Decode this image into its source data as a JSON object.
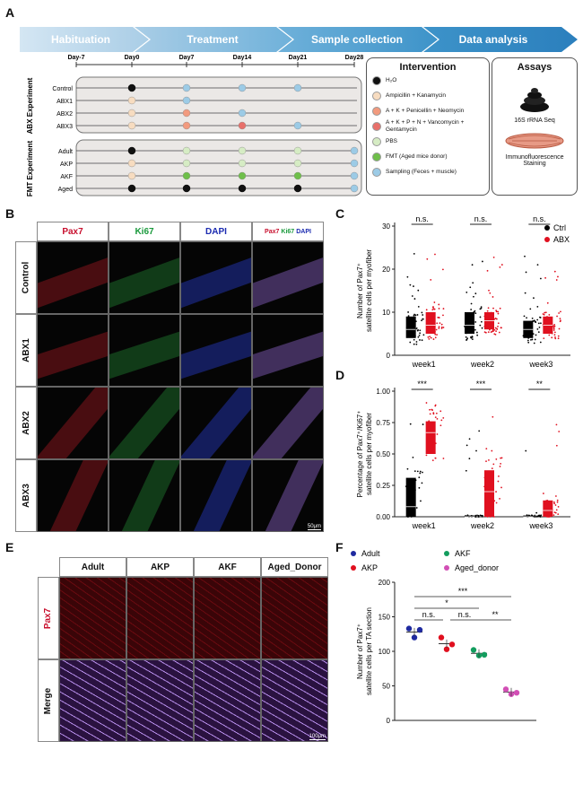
{
  "panels": {
    "A": "A",
    "B": "B",
    "C": "C",
    "D": "D",
    "E": "E",
    "F": "F"
  },
  "phases": [
    "Habituation",
    "Treatment",
    "Sample collection",
    "Data analysis"
  ],
  "days": [
    "Day-7",
    "Day0",
    "Day7",
    "Day14",
    "Day21",
    "Day28"
  ],
  "abx": {
    "title": "ABX Experiment",
    "rows": [
      "Control",
      "ABX1",
      "ABX2",
      "ABX3"
    ]
  },
  "fmt": {
    "title": "FMT Experiment",
    "rows": [
      "Adult",
      "AKP",
      "AKF",
      "Aged"
    ]
  },
  "intervention": {
    "title": "Intervention",
    "items": [
      {
        "label": "H₂O",
        "color": "#111111"
      },
      {
        "label": "Ampicillin + Kanamycin",
        "color": "#f7dcc0"
      },
      {
        "label": "A + K + Penicellin + Neomycin",
        "color": "#f29a7e"
      },
      {
        "label": "A + K + P + N + Vancomycin + Gentamycin",
        "color": "#e8706a"
      },
      {
        "label": "PBS",
        "color": "#d6ecc4"
      },
      {
        "label": "FMT (Aged mice donor)",
        "color": "#6fbf4a"
      },
      {
        "label": "Sampling (Feces + muscle)",
        "color": "#9ccbe6"
      }
    ]
  },
  "assays": {
    "title": "Assays",
    "items": [
      "16S rRNA Seq",
      "Immunofluorescence Staining"
    ]
  },
  "panelB": {
    "columns": [
      "Pax7",
      "Ki67",
      "DAPI"
    ],
    "merge": {
      "a": "Pax7",
      "b": "Ki67",
      "c": "DAPI"
    },
    "rows": [
      "Control",
      "ABX1",
      "ABX2",
      "ABX3"
    ],
    "scale": "50μm"
  },
  "panelE": {
    "columns": [
      "Adult",
      "AKP",
      "AKF",
      "Aged_Donor"
    ],
    "rows": [
      "Pax7",
      "Merge"
    ],
    "scale": "100μm"
  },
  "colors": {
    "ctrl": "#000000",
    "abx": "#e0101f",
    "adult": "#1f2aa0",
    "akp": "#e0101f",
    "akf": "#139d5e",
    "aged": "#d24fb5"
  },
  "chart_data": [
    {
      "panel": "C",
      "type": "bar",
      "ylabel": "Number of Pax7⁺ satellite cells per myofiber",
      "categories": [
        "week1",
        "week2",
        "week3"
      ],
      "ylim": [
        0,
        30
      ],
      "yticks": [
        0,
        10,
        20,
        30
      ],
      "legend": [
        "Ctrl",
        "ABX"
      ],
      "significance": [
        "n.s.",
        "n.s.",
        "n.s."
      ],
      "series": [
        {
          "name": "Ctrl",
          "boxes": [
            {
              "q1": 4,
              "median": 6,
              "q3": 9
            },
            {
              "q1": 5,
              "median": 7,
              "q3": 10
            },
            {
              "q1": 4,
              "median": 6,
              "q3": 8
            }
          ]
        },
        {
          "name": "ABX",
          "boxes": [
            {
              "q1": 5,
              "median": 7,
              "q3": 10
            },
            {
              "q1": 6,
              "median": 8,
              "q3": 10
            },
            {
              "q1": 5,
              "median": 7,
              "q3": 9
            }
          ]
        }
      ]
    },
    {
      "panel": "D",
      "type": "bar",
      "ylabel": "Percentage of Pax7⁺/Ki67⁺ satellite cells per myofiber",
      "categories": [
        "week1",
        "week2",
        "week3"
      ],
      "ylim": [
        0,
        1.0
      ],
      "yticks": [
        "0.00",
        "0.25",
        "0.50",
        "0.75",
        "1.00"
      ],
      "significance": [
        "***",
        "***",
        "**"
      ],
      "series": [
        {
          "name": "Ctrl",
          "boxes": [
            {
              "q1": 0.0,
              "median": 0.08,
              "q3": 0.31
            },
            {
              "q1": 0.0,
              "median": 0.0,
              "q3": 0.01
            },
            {
              "q1": 0.0,
              "median": 0.0,
              "q3": 0.01
            }
          ]
        },
        {
          "name": "ABX",
          "boxes": [
            {
              "q1": 0.5,
              "median": 0.67,
              "q3": 0.76
            },
            {
              "q1": 0.0,
              "median": 0.2,
              "q3": 0.37
            },
            {
              "q1": 0.0,
              "median": 0.05,
              "q3": 0.13
            }
          ]
        }
      ]
    },
    {
      "panel": "F",
      "type": "scatter",
      "ylabel": "Number of Pax7⁺ satellite cells per TA section",
      "ylim": [
        0,
        200
      ],
      "yticks": [
        0,
        50,
        100,
        150,
        200
      ],
      "legend": [
        "Adult",
        "AKF",
        "AKP",
        "Aged_donor"
      ],
      "groups": [
        {
          "name": "Adult",
          "mean": 128,
          "points": [
            133,
            120,
            131
          ]
        },
        {
          "name": "AKP",
          "mean": 111,
          "points": [
            120,
            103,
            110
          ]
        },
        {
          "name": "AKF",
          "mean": 97,
          "points": [
            102,
            94,
            95
          ]
        },
        {
          "name": "Aged_donor",
          "mean": 41,
          "points": [
            45,
            38,
            40
          ]
        }
      ],
      "significance": [
        {
          "label": "***"
        },
        {
          "label": "*"
        },
        {
          "label": "n.s."
        },
        {
          "label": "n.s."
        },
        {
          "label": "**"
        }
      ]
    }
  ]
}
